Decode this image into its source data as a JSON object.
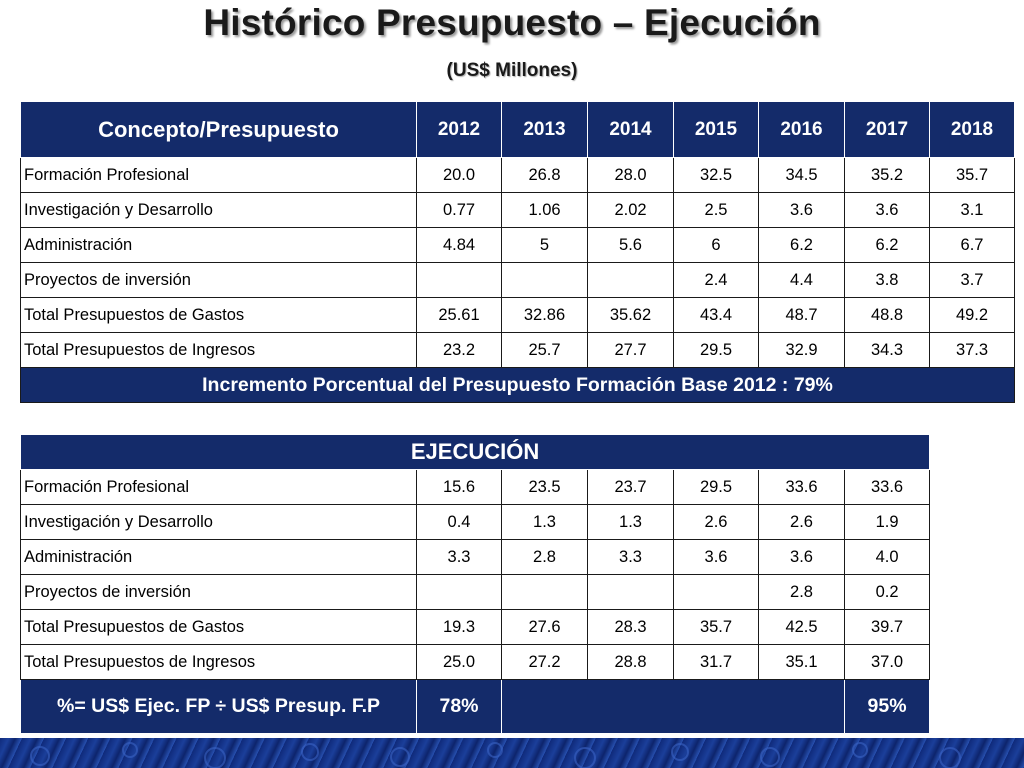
{
  "title": "Histórico Presupuesto – Ejecución",
  "subtitle": "(US$ Millones)",
  "budget": {
    "header": "Concepto/Presupuesto",
    "years": [
      "2012",
      "2013",
      "2014",
      "2015",
      "2016",
      "2017",
      "2018"
    ],
    "rows": [
      {
        "label": "Formación Profesional",
        "values": [
          "20.0",
          "26.8",
          "28.0",
          "32.5",
          "34.5",
          "35.2",
          "35.7"
        ]
      },
      {
        "label": "Investigación y Desarrollo",
        "values": [
          "0.77",
          "1.06",
          "2.02",
          "2.5",
          "3.6",
          "3.6",
          "3.1"
        ]
      },
      {
        "label": "Administración",
        "values": [
          "4.84",
          "5",
          "5.6",
          "6",
          "6.2",
          "6.2",
          "6.7"
        ]
      },
      {
        "label": "Proyectos de inversión",
        "values": [
          "",
          "",
          "",
          "2.4",
          "4.4",
          "3.8",
          "3.7"
        ]
      },
      {
        "label": "Total Presupuestos de Gastos",
        "values": [
          "25.61",
          "32.86",
          "35.62",
          "43.4",
          "48.7",
          "48.8",
          "49.2"
        ]
      },
      {
        "label": "Total Presupuestos de Ingresos",
        "values": [
          "23.2",
          "25.7",
          "27.7",
          "29.5",
          "32.9",
          "34.3",
          "37.3"
        ]
      }
    ],
    "footer": "Incremento Porcentual del Presupuesto Formación Base 2012 : 79%"
  },
  "execution": {
    "header": "EJECUCIÓN",
    "rows": [
      {
        "label": "Formación Profesional",
        "values": [
          "15.6",
          "23.5",
          "23.7",
          "29.5",
          "33.6",
          "33.6"
        ]
      },
      {
        "label": "Investigación y Desarrollo",
        "values": [
          "0.4",
          "1.3",
          "1.3",
          "2.6",
          "2.6",
          "1.9"
        ]
      },
      {
        "label": "Administración",
        "values": [
          "3.3",
          "2.8",
          "3.3",
          "3.6",
          "3.6",
          "4.0"
        ]
      },
      {
        "label": "Proyectos de inversión",
        "values": [
          "",
          "",
          "",
          "",
          "2.8",
          "0.2"
        ]
      },
      {
        "label": "Total Presupuestos de Gastos",
        "values": [
          "19.3",
          "27.6",
          "28.3",
          "35.7",
          "42.5",
          "39.7"
        ]
      },
      {
        "label": "Total Presupuestos de Ingresos",
        "values": [
          "25.0",
          "27.2",
          "28.8",
          "31.7",
          "35.1",
          "37.0"
        ]
      }
    ],
    "footer": {
      "label": "%= US$ Ejec. FP ÷ US$ Presup.  F.P",
      "first": "78%",
      "last": "95%"
    }
  },
  "colors": {
    "header_bg": "#142b6a",
    "header_text": "#ffffff"
  }
}
